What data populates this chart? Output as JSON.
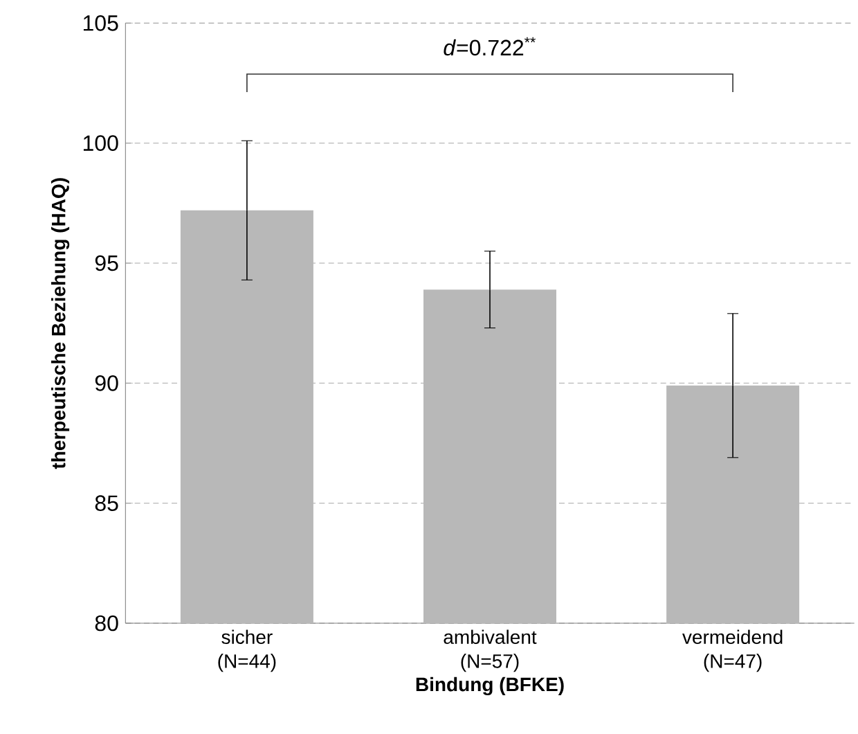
{
  "chart_data": {
    "type": "bar",
    "xlabel": "Bindung (BFKE)",
    "ylabel": "therpeutische Beziehung (HAQ)",
    "categories": [
      "sicher (N=44)",
      "ambivalent (N=57)",
      "vermeidend (N=47)"
    ],
    "values": [
      97.2,
      93.9,
      89.9
    ],
    "errors": [
      2.9,
      1.6,
      3.0
    ],
    "color": "#b8b8b8",
    "ylim": [
      80,
      105
    ],
    "yticks": [
      80,
      85,
      90,
      95,
      100,
      105
    ],
    "grid": "y",
    "annotations": [
      "*d*=0.722$^{**}$"
    ]
  }
}
